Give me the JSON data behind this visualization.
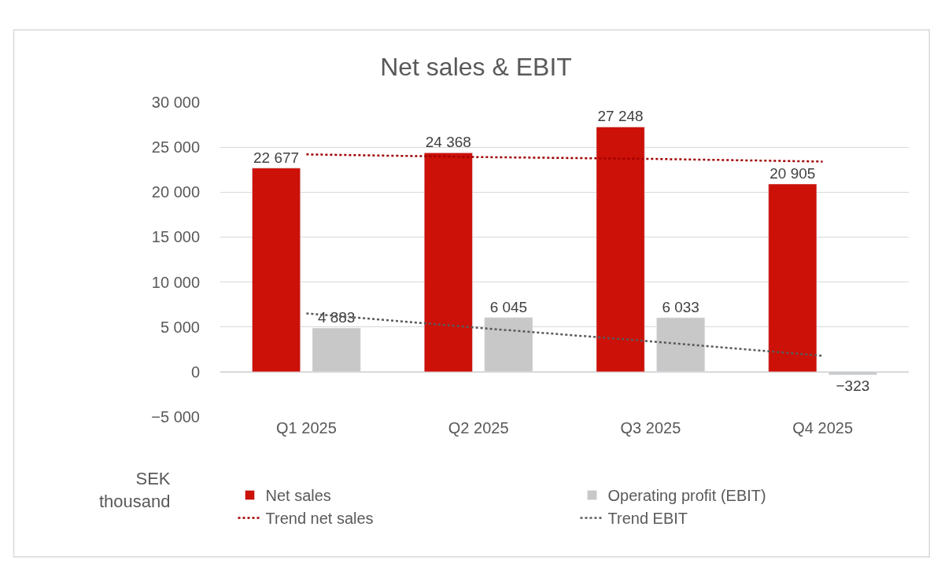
{
  "chart_data": {
    "type": "bar",
    "title": "Net sales & EBIT",
    "ylabel": "SEK thousand",
    "categories": [
      "Q1 2025",
      "Q2 2025",
      "Q3 2025",
      "Q4 2025"
    ],
    "series": [
      {
        "name": "Net sales",
        "color": "#cc1108",
        "values": [
          22677,
          24368,
          27248,
          20905
        ],
        "value_labels": [
          "22 677",
          "24 368",
          "27 248",
          "20 905"
        ]
      },
      {
        "name": "Operating profit (EBIT)",
        "color": "#c8c8c8",
        "values": [
          4883,
          6045,
          6033,
          -323
        ],
        "value_labels": [
          "4 883",
          "6 045",
          "6 033",
          "−323"
        ]
      },
      {
        "name": "Trend net sales",
        "type": "line",
        "color": "#a00000",
        "line_style": "dotted",
        "marker": "none",
        "values": [
          24200,
          23900,
          23700,
          23400
        ]
      },
      {
        "name": "Trend EBIT",
        "type": "line",
        "color": "#595959",
        "line_style": "dotted",
        "marker": "none",
        "values": [
          6500,
          4900,
          3400,
          1800
        ]
      }
    ],
    "ylim": [
      -5000,
      30000
    ],
    "yticks": [
      {
        "value": -5000,
        "label": "−5 000"
      },
      {
        "value": 0,
        "label": "0"
      },
      {
        "value": 5000,
        "label": "5 000"
      },
      {
        "value": 10000,
        "label": "10 000"
      },
      {
        "value": 15000,
        "label": "15 000"
      },
      {
        "value": 20000,
        "label": "20 000"
      },
      {
        "value": 25000,
        "label": "25 000"
      },
      {
        "value": 30000,
        "label": "30 000"
      }
    ],
    "grid": "y",
    "legend": "bottom"
  }
}
